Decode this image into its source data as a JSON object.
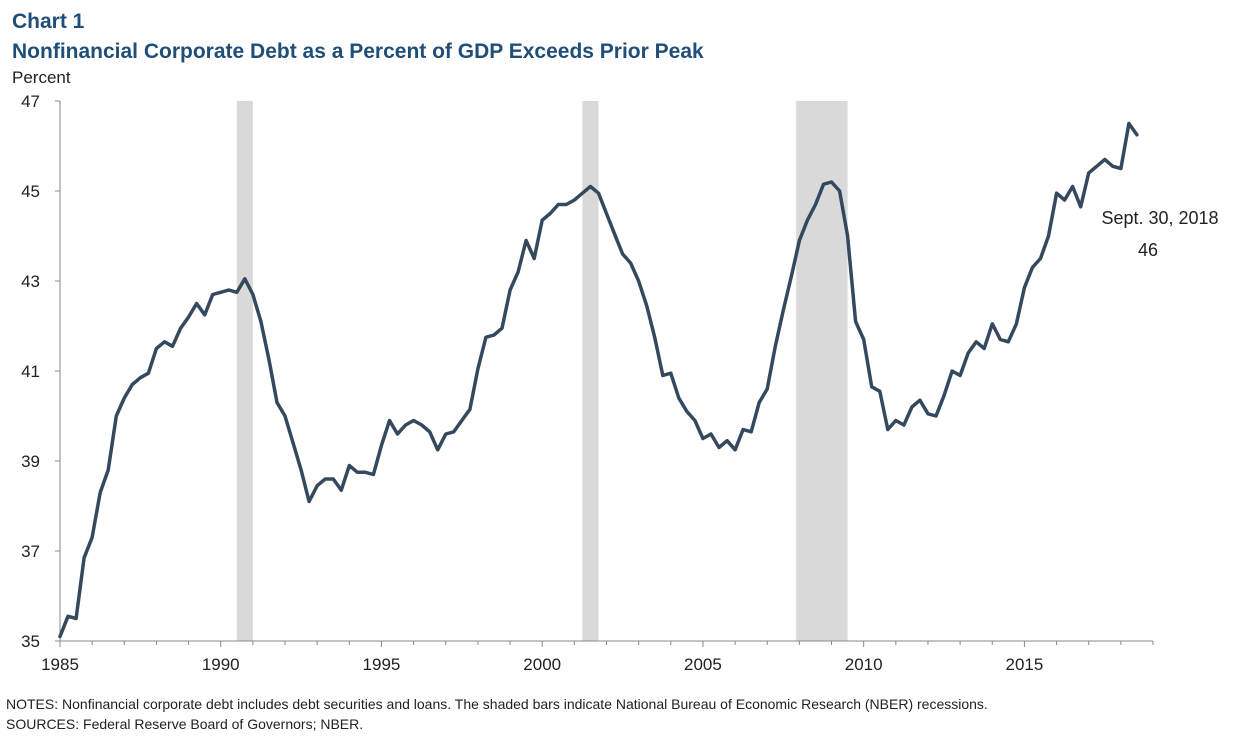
{
  "header": {
    "chart_number": "Chart 1",
    "title": "Nonfinancial Corporate Debt as a Percent of GDP Exceeds Prior Peak"
  },
  "footer": {
    "notes": "NOTES: Nonfinancial corporate debt includes debt securities and loans. The shaded bars indicate National Bureau of Economic Research (NBER) recessions.",
    "sources": "SOURCES: Federal Reserve Board of Governors; NBER."
  },
  "colors": {
    "line": "#34495e",
    "recession": "#d9d9d9",
    "axis": "#888888",
    "title": "#1f4e79"
  },
  "chart_data": {
    "type": "line",
    "title": "Nonfinancial Corporate Debt as a Percent of GDP Exceeds Prior Peak",
    "xlabel": "",
    "ylabel": "Percent",
    "xlim": [
      1985,
      2019
    ],
    "ylim": [
      35,
      47
    ],
    "x_ticks": [
      1985,
      1990,
      1995,
      2000,
      2005,
      2010,
      2015
    ],
    "y_ticks": [
      35,
      37,
      39,
      41,
      43,
      45,
      47
    ],
    "grid": false,
    "recessions": [
      [
        1990.5,
        1991.0
      ],
      [
        2001.25,
        2001.75
      ],
      [
        2007.9,
        2009.5
      ]
    ],
    "annotation": {
      "label": "Sept. 30, 2018",
      "value": "46"
    },
    "series": [
      {
        "name": "Nonfinancial corporate debt as a percent of GDP",
        "x": [
          1985.0,
          1985.25,
          1985.5,
          1985.75,
          1986.0,
          1986.25,
          1986.5,
          1986.75,
          1987.0,
          1987.25,
          1987.5,
          1987.75,
          1988.0,
          1988.25,
          1988.5,
          1988.75,
          1989.0,
          1989.25,
          1989.5,
          1989.75,
          1990.0,
          1990.25,
          1990.5,
          1990.75,
          1991.0,
          1991.25,
          1991.5,
          1991.75,
          1992.0,
          1992.25,
          1992.5,
          1992.75,
          1993.0,
          1993.25,
          1993.5,
          1993.75,
          1994.0,
          1994.25,
          1994.5,
          1994.75,
          1995.0,
          1995.25,
          1995.5,
          1995.75,
          1996.0,
          1996.25,
          1996.5,
          1996.75,
          1997.0,
          1997.25,
          1997.5,
          1997.75,
          1998.0,
          1998.25,
          1998.5,
          1998.75,
          1999.0,
          1999.25,
          1999.5,
          1999.75,
          2000.0,
          2000.25,
          2000.5,
          2000.75,
          2001.0,
          2001.25,
          2001.5,
          2001.75,
          2002.0,
          2002.25,
          2002.5,
          2002.75,
          2003.0,
          2003.25,
          2003.5,
          2003.75,
          2004.0,
          2004.25,
          2004.5,
          2004.75,
          2005.0,
          2005.25,
          2005.5,
          2005.75,
          2006.0,
          2006.25,
          2006.5,
          2006.75,
          2007.0,
          2007.25,
          2007.5,
          2007.75,
          2008.0,
          2008.25,
          2008.5,
          2008.75,
          2009.0,
          2009.25,
          2009.5,
          2009.75,
          2010.0,
          2010.25,
          2010.5,
          2010.75,
          2011.0,
          2011.25,
          2011.5,
          2011.75,
          2012.0,
          2012.25,
          2012.5,
          2012.75,
          2013.0,
          2013.25,
          2013.5,
          2013.75,
          2014.0,
          2014.25,
          2014.5,
          2014.75,
          2015.0,
          2015.25,
          2015.5,
          2015.75,
          2016.0,
          2016.25,
          2016.5,
          2016.75,
          2017.0,
          2017.25,
          2017.5,
          2017.75,
          2018.0,
          2018.25,
          2018.5
        ],
        "values": [
          35.1,
          35.55,
          35.5,
          36.85,
          37.3,
          38.3,
          38.8,
          40.0,
          40.4,
          40.7,
          40.85,
          40.95,
          41.5,
          41.65,
          41.55,
          41.95,
          42.2,
          42.5,
          42.25,
          42.7,
          42.75,
          42.8,
          42.75,
          43.05,
          42.7,
          42.1,
          41.25,
          40.3,
          40.0,
          39.4,
          38.8,
          38.1,
          38.45,
          38.6,
          38.6,
          38.35,
          38.9,
          38.75,
          38.75,
          38.7,
          39.35,
          39.9,
          39.6,
          39.8,
          39.9,
          39.8,
          39.65,
          39.25,
          39.6,
          39.65,
          39.9,
          40.15,
          41.05,
          41.75,
          41.8,
          41.95,
          42.8,
          43.2,
          43.9,
          43.5,
          44.35,
          44.5,
          44.7,
          44.7,
          44.8,
          44.95,
          45.1,
          44.95,
          44.5,
          44.05,
          43.6,
          43.4,
          43.0,
          42.45,
          41.75,
          40.9,
          40.95,
          40.4,
          40.1,
          39.9,
          39.5,
          39.6,
          39.3,
          39.45,
          39.25,
          39.7,
          39.65,
          40.3,
          40.6,
          41.55,
          42.35,
          43.1,
          43.9,
          44.35,
          44.7,
          45.15,
          45.2,
          45.0,
          44.0,
          42.1,
          41.7,
          40.65,
          40.55,
          39.7,
          39.9,
          39.8,
          40.2,
          40.35,
          40.05,
          40.0,
          40.45,
          41.0,
          40.9,
          41.4,
          41.65,
          41.5,
          42.05,
          41.7,
          41.65,
          42.05,
          42.85,
          43.3,
          43.5,
          44.0,
          44.95,
          44.8,
          45.1,
          44.65,
          45.4,
          45.55,
          45.7,
          45.55,
          45.5,
          46.5,
          46.25
        ]
      }
    ]
  }
}
